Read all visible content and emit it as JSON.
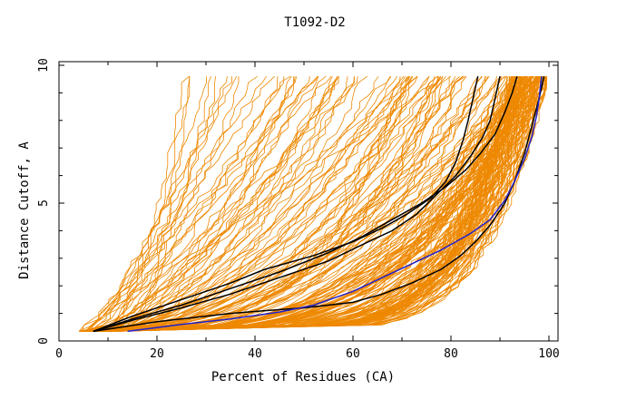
{
  "chart_data": {
    "type": "line",
    "title": "T1092-D2",
    "xlabel": "Percent of Residues (CA)",
    "ylabel": "Distance Cutoff, A",
    "xlim": [
      0,
      100
    ],
    "ylim": [
      0,
      10
    ],
    "xticks": [
      "0",
      "20",
      "40",
      "60",
      "80",
      "100"
    ],
    "yticks": [
      "0",
      "5",
      "10"
    ],
    "colors": {
      "models": "#ee8800",
      "reference": "#000000",
      "highlight": "#2222cc",
      "frame": "#000000"
    },
    "grid": false,
    "background_models": {
      "count": 220,
      "note_color": "orange",
      "start_x_range": [
        4,
        12
      ],
      "start_y": 0.35
    },
    "series": [
      {
        "color": "black",
        "x": [
          7,
          20,
          35,
          42,
          50,
          60,
          66,
          72,
          78,
          82,
          85,
          88,
          91,
          93,
          95,
          96.5,
          98,
          99
        ],
        "y": [
          0.35,
          0.7,
          1.0,
          1.1,
          1.2,
          1.4,
          1.7,
          2.1,
          2.6,
          3.1,
          3.6,
          4.2,
          5.0,
          5.8,
          6.8,
          7.8,
          8.8,
          9.6
        ]
      },
      {
        "color": "blue",
        "x": [
          14,
          25,
          35,
          45,
          52,
          60,
          66,
          72,
          78,
          84,
          88,
          91,
          93,
          95,
          96.5,
          97.5,
          98,
          98.5
        ],
        "y": [
          0.35,
          0.6,
          0.8,
          1.05,
          1.3,
          1.8,
          2.3,
          2.8,
          3.3,
          3.9,
          4.4,
          5.1,
          5.8,
          6.6,
          7.4,
          8.2,
          8.8,
          9.6
        ]
      },
      {
        "color": "black",
        "x": [
          7,
          15,
          25,
          35,
          45,
          55,
          62,
          68,
          74,
          79,
          83,
          86,
          89,
          91,
          92.5,
          93.5
        ],
        "y": [
          0.35,
          0.8,
          1.3,
          1.9,
          2.5,
          3.2,
          3.8,
          4.4,
          5.0,
          5.6,
          6.2,
          6.8,
          7.5,
          8.3,
          9.0,
          9.6
        ]
      },
      {
        "color": "black",
        "x": [
          7,
          15,
          25,
          35,
          42,
          52,
          60,
          66,
          71,
          76,
          79,
          81,
          82.5,
          83.5,
          84.5,
          85.5
        ],
        "y": [
          0.35,
          0.9,
          1.5,
          2.1,
          2.6,
          3.1,
          3.6,
          4.1,
          4.6,
          5.2,
          5.8,
          6.5,
          7.3,
          8.0,
          8.8,
          9.6
        ]
      },
      {
        "color": "black",
        "x": [
          7,
          15,
          25,
          35,
          45,
          55,
          62,
          68,
          73,
          77,
          81,
          84,
          86.5,
          88,
          89,
          90
        ],
        "y": [
          0.35,
          0.75,
          1.2,
          1.7,
          2.3,
          2.9,
          3.5,
          4.0,
          4.6,
          5.3,
          6.0,
          6.7,
          7.4,
          8.0,
          8.8,
          9.6
        ]
      }
    ]
  }
}
